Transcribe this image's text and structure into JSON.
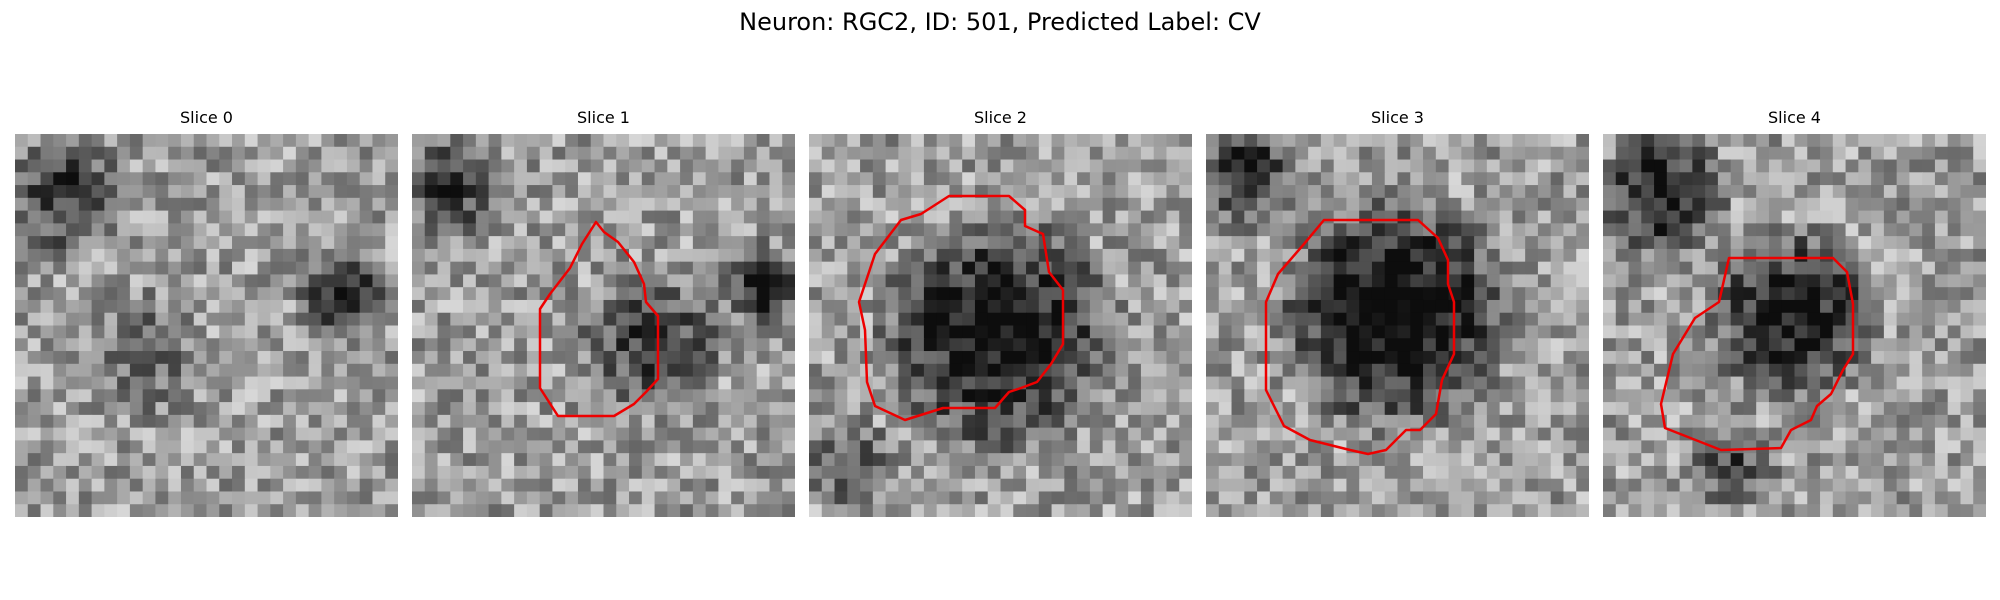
{
  "figure": {
    "title": "Neuron: RGC2, ID: 501, Predicted Label: CV"
  },
  "panels": [
    {
      "title": "Slice 0",
      "has_contour": false
    },
    {
      "title": "Slice 1",
      "has_contour": true
    },
    {
      "title": "Slice 2",
      "has_contour": true
    },
    {
      "title": "Slice 3",
      "has_contour": true
    },
    {
      "title": "Slice 4",
      "has_contour": true
    }
  ],
  "colors": {
    "contour": "#ee0000",
    "background": "#ffffff"
  }
}
